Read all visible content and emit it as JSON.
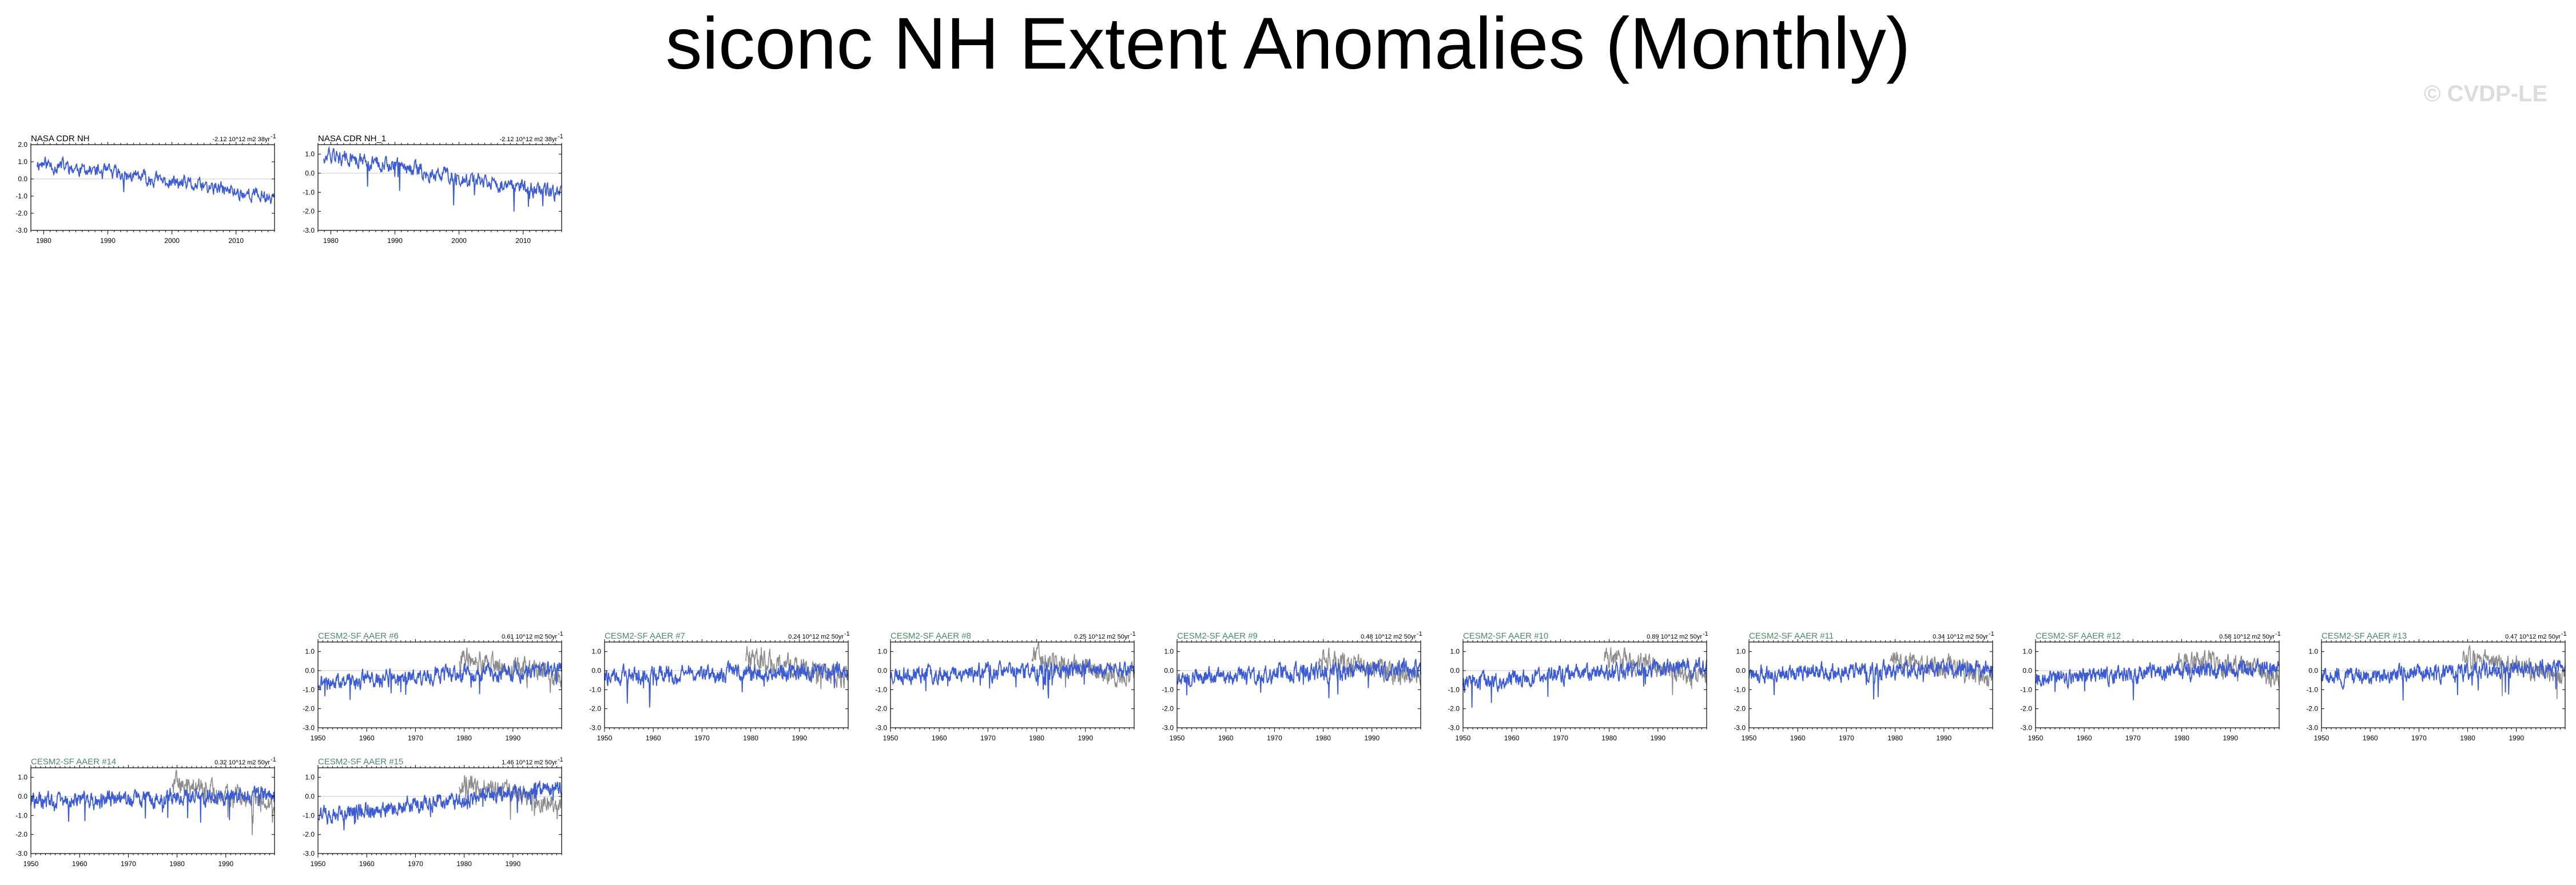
{
  "title": "siconc NH Extent Anomalies (Monthly)",
  "watermark": "© CVDP-LE",
  "colors": {
    "obs_title": "#000000",
    "model_title": "#4a8a6a",
    "series_line": "#3b5bd6",
    "obs_overlay": "#8c8c8c",
    "axis": "#000000",
    "zero_line": "#c8c8c8"
  },
  "chart_data": [
    {
      "type": "line",
      "panel_title": "NASA CDR NH",
      "trend_label": "-2.12 10^12 m2 38yr",
      "trend_sup": "-1",
      "xlim": [
        1978,
        2016
      ],
      "xticks": [
        1980,
        1990,
        2000,
        2010
      ],
      "ylim": [
        -3.0,
        2.0
      ],
      "yticks": [
        2.0,
        1.0,
        0.0,
        -1.0,
        -2.0,
        -3.0
      ],
      "ytick_labels": [
        "2.0",
        "1.0",
        "0.0",
        "-1.0",
        "-2.0",
        "-3.0"
      ],
      "series": [
        {
          "values_description": "",
          "start": 1978.9,
          "end": 2016.0,
          "trend": -0.055,
          "offset": 0.95,
          "noise": 0.35,
          "seed": 11
        }
      ],
      "overlay": null
    },
    {
      "type": "line",
      "panel_title": "NASA CDR NH_1",
      "trend_label": "-2.12 10^12 m2 38yr",
      "trend_sup": "-1",
      "xlim": [
        1978,
        2016
      ],
      "xticks": [
        1980,
        1990,
        2000,
        2010
      ],
      "ylim": [
        -3.0,
        1.5
      ],
      "yticks": [
        1.0,
        0.0,
        -1.0,
        -2.0,
        -3.0
      ],
      "ytick_labels": [
        "1.0",
        "0.0",
        "-1.0",
        "-2.0",
        "-3.0"
      ],
      "series": [
        {
          "start": 1978.9,
          "end": 2016.0,
          "trend": -0.055,
          "offset": 0.95,
          "noise": 0.35,
          "seed": 12
        }
      ],
      "overlay": null
    },
    {
      "type": "line",
      "panel_title": "CESM2-SF AAER #6",
      "trend_label": "0.61 10^12 m2 50yr",
      "trend_sup": "-1",
      "xlim": [
        1950,
        2000
      ],
      "xticks": [
        1950,
        1960,
        1970,
        1980,
        1990
      ],
      "ylim": [
        -3.0,
        1.5
      ],
      "yticks": [
        1.0,
        0.0,
        -1.0,
        -2.0,
        -3.0
      ],
      "ytick_labels": [
        "1.0",
        "0.0",
        "-1.0",
        "-2.0",
        "-3.0"
      ],
      "series": [
        {
          "start": 1950,
          "end": 2000,
          "trend": 0.013,
          "offset": -0.6,
          "noise": 0.35,
          "seed": 21
        }
      ],
      "overlay": {
        "start": 1979,
        "end": 2000,
        "offset": 0.7,
        "noise": 0.45,
        "seed": 91
      }
    },
    {
      "type": "line",
      "panel_title": "CESM2-SF AAER #7",
      "trend_label": "0.24 10^12 m2 50yr",
      "trend_sup": "-1",
      "xlim": [
        1950,
        2000
      ],
      "xticks": [
        1950,
        1960,
        1970,
        1980,
        1990
      ],
      "ylim": [
        -3.0,
        1.5
      ],
      "yticks": [
        1.0,
        0.0,
        -1.0,
        -2.0,
        -3.0
      ],
      "ytick_labels": [
        "1.0",
        "0.0",
        "-1.0",
        "-2.0",
        "-3.0"
      ],
      "series": [
        {
          "start": 1950,
          "end": 2000,
          "trend": 0.006,
          "offset": -0.3,
          "noise": 0.35,
          "seed": 22
        }
      ],
      "overlay": {
        "start": 1979,
        "end": 2000,
        "offset": 0.7,
        "noise": 0.45,
        "seed": 92
      }
    },
    {
      "type": "line",
      "panel_title": "CESM2-SF AAER #8",
      "trend_label": "0.25 10^12 m2 50yr",
      "trend_sup": "-1",
      "xlim": [
        1950,
        2000
      ],
      "xticks": [
        1950,
        1960,
        1970,
        1980,
        1990
      ],
      "ylim": [
        -3.0,
        1.5
      ],
      "yticks": [
        1.0,
        0.0,
        -1.0,
        -2.0,
        -3.0
      ],
      "ytick_labels": [
        "1.0",
        "0.0",
        "-1.0",
        "-2.0",
        "-3.0"
      ],
      "series": [
        {
          "start": 1950,
          "end": 2000,
          "trend": 0.006,
          "offset": -0.2,
          "noise": 0.35,
          "seed": 23
        }
      ],
      "overlay": {
        "start": 1979,
        "end": 2000,
        "offset": 0.7,
        "noise": 0.45,
        "seed": 93
      }
    },
    {
      "type": "line",
      "panel_title": "CESM2-SF AAER #9",
      "trend_label": "0.48 10^12 m2 50yr",
      "trend_sup": "-1",
      "xlim": [
        1950,
        2000
      ],
      "xticks": [
        1950,
        1960,
        1970,
        1980,
        1990
      ],
      "ylim": [
        -3.0,
        1.5
      ],
      "yticks": [
        1.0,
        0.0,
        -1.0,
        -2.0,
        -3.0
      ],
      "ytick_labels": [
        "1.0",
        "0.0",
        "-1.0",
        "-2.0",
        "-3.0"
      ],
      "series": [
        {
          "start": 1950,
          "end": 2000,
          "trend": 0.01,
          "offset": -0.4,
          "noise": 0.38,
          "seed": 24
        }
      ],
      "overlay": {
        "start": 1979,
        "end": 2000,
        "offset": 0.7,
        "noise": 0.45,
        "seed": 94
      }
    },
    {
      "type": "line",
      "panel_title": "CESM2-SF AAER #10",
      "trend_label": "0.89 10^12 m2 50yr",
      "trend_sup": "-1",
      "xlim": [
        1950,
        2000
      ],
      "xticks": [
        1950,
        1960,
        1970,
        1980,
        1990
      ],
      "ylim": [
        -3.0,
        1.5
      ],
      "yticks": [
        1.0,
        0.0,
        -1.0,
        -2.0,
        -3.0
      ],
      "ytick_labels": [
        "1.0",
        "0.0",
        "-1.0",
        "-2.0",
        "-3.0"
      ],
      "series": [
        {
          "start": 1950,
          "end": 2000,
          "trend": 0.018,
          "offset": -0.6,
          "noise": 0.35,
          "seed": 25
        }
      ],
      "overlay": {
        "start": 1979,
        "end": 2000,
        "offset": 0.7,
        "noise": 0.45,
        "seed": 95
      }
    },
    {
      "type": "line",
      "panel_title": "CESM2-SF AAER #11",
      "trend_label": "0.34 10^12 m2 50yr",
      "trend_sup": "-1",
      "xlim": [
        1950,
        2000
      ],
      "xticks": [
        1950,
        1960,
        1970,
        1980,
        1990
      ],
      "ylim": [
        -3.0,
        1.5
      ],
      "yticks": [
        1.0,
        0.0,
        -1.0,
        -2.0,
        -3.0
      ],
      "ytick_labels": [
        "1.0",
        "0.0",
        "-1.0",
        "-2.0",
        "-3.0"
      ],
      "series": [
        {
          "start": 1950,
          "end": 2000,
          "trend": 0.007,
          "offset": -0.2,
          "noise": 0.35,
          "seed": 26
        }
      ],
      "overlay": {
        "start": 1979,
        "end": 2000,
        "offset": 0.7,
        "noise": 0.45,
        "seed": 96
      }
    },
    {
      "type": "line",
      "panel_title": "CESM2-SF AAER #12",
      "trend_label": "0.58 10^12 m2 50yr",
      "trend_sup": "-1",
      "xlim": [
        1950,
        2000
      ],
      "xticks": [
        1950,
        1960,
        1970,
        1980,
        1990
      ],
      "ylim": [
        -3.0,
        1.5
      ],
      "yticks": [
        1.0,
        0.0,
        -1.0,
        -2.0,
        -3.0
      ],
      "ytick_labels": [
        "1.0",
        "0.0",
        "-1.0",
        "-2.0",
        "-3.0"
      ],
      "series": [
        {
          "start": 1950,
          "end": 2000,
          "trend": 0.012,
          "offset": -0.4,
          "noise": 0.35,
          "seed": 27
        }
      ],
      "overlay": {
        "start": 1979,
        "end": 2000,
        "offset": 0.7,
        "noise": 0.45,
        "seed": 97
      }
    },
    {
      "type": "line",
      "panel_title": "CESM2-SF AAER #13",
      "trend_label": "0.47 10^12 m2 50yr",
      "trend_sup": "-1",
      "xlim": [
        1950,
        2000
      ],
      "xticks": [
        1950,
        1960,
        1970,
        1980,
        1990
      ],
      "ylim": [
        -3.0,
        1.5
      ],
      "yticks": [
        1.0,
        0.0,
        -1.0,
        -2.0,
        -3.0
      ],
      "ytick_labels": [
        "1.0",
        "0.0",
        "-1.0",
        "-2.0",
        "-3.0"
      ],
      "series": [
        {
          "start": 1950,
          "end": 2000,
          "trend": 0.01,
          "offset": -0.35,
          "noise": 0.35,
          "seed": 28
        }
      ],
      "overlay": {
        "start": 1979,
        "end": 2000,
        "offset": 0.7,
        "noise": 0.45,
        "seed": 98
      }
    },
    {
      "type": "line",
      "panel_title": "CESM2-SF AAER #14",
      "trend_label": "0.32 10^12 m2 50yr",
      "trend_sup": "-1",
      "xlim": [
        1950,
        2000
      ],
      "xticks": [
        1950,
        1960,
        1970,
        1980,
        1990
      ],
      "ylim": [
        -3.0,
        1.5
      ],
      "yticks": [
        1.0,
        0.0,
        -1.0,
        -2.0,
        -3.0
      ],
      "ytick_labels": [
        "1.0",
        "0.0",
        "-1.0",
        "-2.0",
        "-3.0"
      ],
      "series": [
        {
          "start": 1950,
          "end": 2000,
          "trend": 0.008,
          "offset": -0.3,
          "noise": 0.35,
          "seed": 29
        }
      ],
      "overlay": {
        "start": 1979,
        "end": 2000,
        "offset": 0.7,
        "noise": 0.45,
        "seed": 99
      }
    },
    {
      "type": "line",
      "panel_title": "CESM2-SF AAER #15",
      "trend_label": "1.46 10^12 m2 50yr",
      "trend_sup": "-1",
      "xlim": [
        1950,
        2000
      ],
      "xticks": [
        1950,
        1960,
        1970,
        1980,
        1990
      ],
      "ylim": [
        -3.0,
        1.5
      ],
      "yticks": [
        1.0,
        0.0,
        -1.0,
        -2.0,
        -3.0
      ],
      "ytick_labels": [
        "1.0",
        "0.0",
        "-1.0",
        "-2.0",
        "-3.0"
      ],
      "series": [
        {
          "start": 1950,
          "end": 2000,
          "trend": 0.028,
          "offset": -1.0,
          "noise": 0.35,
          "seed": 30
        }
      ],
      "overlay": {
        "start": 1979,
        "end": 2000,
        "offset": 0.7,
        "noise": 0.45,
        "seed": 100
      }
    }
  ]
}
